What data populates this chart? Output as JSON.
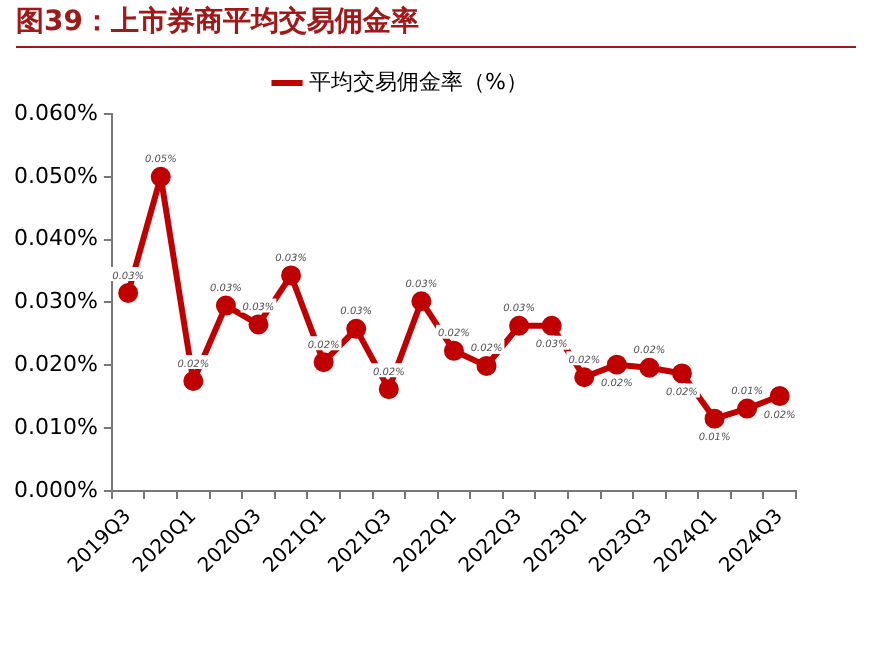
{
  "chart_data": {
    "type": "line",
    "title": "图39：上市券商平均交易佣金率",
    "categories": [
      "2019Q3",
      null,
      "2020Q1",
      null,
      "2020Q3",
      null,
      "2021Q1",
      null,
      "2021Q3",
      null,
      "2022Q1",
      null,
      "2022Q3",
      null,
      "2023Q1",
      null,
      "2023Q3",
      null,
      "2024Q1",
      null,
      "2024Q3"
    ],
    "series": [
      {
        "name": "平均交易佣金率（%）",
        "color": "#c00000",
        "values": [
          0.0315,
          0.05,
          0.0175,
          0.0295,
          0.0265,
          0.0343,
          0.0205,
          0.0258,
          0.0162,
          0.0302,
          0.0223,
          0.0199,
          0.0263,
          0.0263,
          0.0181,
          0.0201,
          0.0196,
          0.0187,
          0.0115,
          0.0131,
          0.0151
        ],
        "value_labels": [
          "0.03%",
          "0.05%",
          "0.02%",
          "0.03%",
          "0.03%",
          "0.03%",
          "0.02%",
          "0.03%",
          "0.02%",
          "0.03%",
          "0.02%",
          "0.02%",
          "0.03%",
          "0.03%",
          "0.02%",
          "0.02%",
          "0.02%",
          "0.02%",
          "0.01%",
          "0.01%",
          "0.02%"
        ]
      }
    ],
    "ylim": [
      0,
      0.06
    ],
    "yticks": [
      {
        "value": 0,
        "label": "0.000%"
      },
      {
        "value": 0.01,
        "label": "0.010%"
      },
      {
        "value": 0.02,
        "label": "0.020%"
      },
      {
        "value": 0.03,
        "label": "0.030%"
      },
      {
        "value": 0.04,
        "label": "0.040%"
      },
      {
        "value": 0.05,
        "label": "0.050%"
      },
      {
        "value": 0.06,
        "label": "0.060%"
      }
    ],
    "grid": false,
    "legend": "top",
    "marker": "circle",
    "line_style": "solid"
  }
}
